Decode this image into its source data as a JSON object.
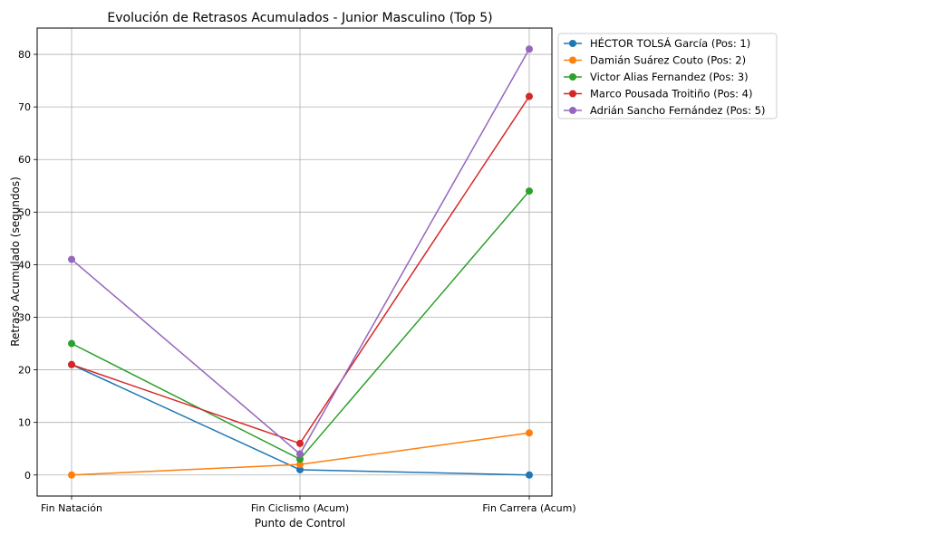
{
  "chart_data": {
    "type": "line",
    "title": "Evolución de Retrasos Acumulados - Junior Masculino (Top 5)",
    "xlabel": "Punto de Control",
    "ylabel": "Retraso Acumulado (segundos)",
    "categories": [
      "Fin Natación",
      "Fin Ciclismo (Acum)",
      "Fin Carrera (Acum)"
    ],
    "ylim": [
      -4,
      85
    ],
    "yticks": [
      0,
      10,
      20,
      30,
      40,
      50,
      60,
      70,
      80
    ],
    "grid": true,
    "legend_position": "outside-top-right",
    "series": [
      {
        "name": "HÉCTOR TOLSÁ García (Pos: 1)",
        "color": "#1f77b4",
        "values": [
          21,
          1,
          0
        ]
      },
      {
        "name": "Damián Suárez Couto (Pos: 2)",
        "color": "#ff7f0e",
        "values": [
          0,
          2,
          8
        ]
      },
      {
        "name": "Victor Alias Fernandez (Pos: 3)",
        "color": "#2ca02c",
        "values": [
          25,
          3,
          54
        ]
      },
      {
        "name": "Marco Pousada Troitiño (Pos: 4)",
        "color": "#d62728",
        "values": [
          21,
          6,
          72
        ]
      },
      {
        "name": "Adrián Sancho Fernández (Pos: 5)",
        "color": "#9467bd",
        "values": [
          41,
          4,
          81
        ]
      }
    ]
  }
}
